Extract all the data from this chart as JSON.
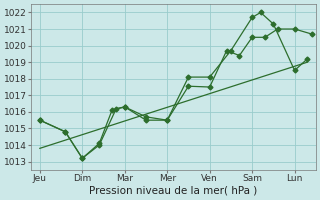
{
  "xlabel": "Pression niveau de la mer( hPa )",
  "bg_color": "#cce8e8",
  "grid_color": "#99cccc",
  "line_color": "#2d6e2d",
  "ylim": [
    1012.5,
    1022.5
  ],
  "yticks": [
    1013,
    1014,
    1015,
    1016,
    1017,
    1018,
    1019,
    1020,
    1021,
    1022
  ],
  "xtick_labels": [
    "Jeu",
    "Dim",
    "Mar",
    "Mer",
    "Ven",
    "Sam",
    "Lun"
  ],
  "xtick_positions": [
    0,
    1,
    2,
    3,
    4,
    5,
    6
  ],
  "xlim": [
    -0.2,
    6.5
  ],
  "line1_x": [
    0,
    0.6,
    1.0,
    1.4,
    1.7,
    2.0,
    2.5,
    3.0,
    3.5,
    4.0,
    4.4,
    4.7,
    5.0,
    5.3,
    5.6,
    6.0,
    6.4
  ],
  "line1_y": [
    1015.5,
    1014.8,
    1013.2,
    1014.1,
    1016.1,
    1016.3,
    1015.7,
    1015.5,
    1017.55,
    1017.5,
    1019.7,
    1019.4,
    1020.5,
    1020.5,
    1021.0,
    1021.0,
    1020.7
  ],
  "line2_x": [
    0,
    0.6,
    1.0,
    1.4,
    1.8,
    2.0,
    2.5,
    3.0,
    3.5,
    4.0,
    4.5,
    5.0,
    5.2,
    5.5,
    6.0,
    6.3
  ],
  "line2_y": [
    1015.5,
    1014.8,
    1013.2,
    1014.0,
    1016.2,
    1016.3,
    1015.5,
    1015.5,
    1018.1,
    1018.1,
    1019.7,
    1021.7,
    1022.0,
    1021.3,
    1018.5,
    1019.2
  ],
  "line3_x": [
    0,
    6.3
  ],
  "line3_y": [
    1013.8,
    1019.0
  ],
  "tick_fontsize": 6.5,
  "axis_fontsize": 7.5
}
